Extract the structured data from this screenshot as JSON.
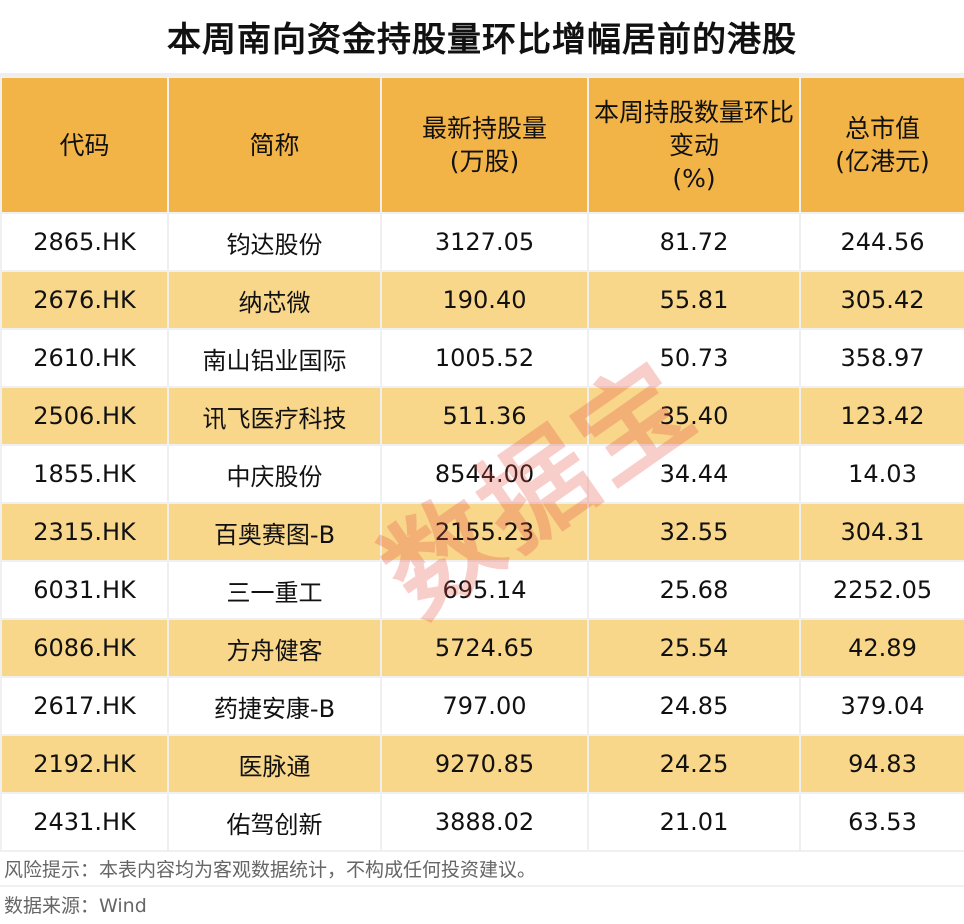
{
  "title": "本周南向资金持股量环比增幅居前的港股",
  "columns": [
    "代码",
    "简称",
    "最新持股量\n（万股）",
    "本周持股数量环比变动\n（%）",
    "总市值\n（亿港元）"
  ],
  "rows": [
    [
      "2865.HK",
      "钧达股份",
      "3127.05",
      "81.72",
      "244.56"
    ],
    [
      "2676.HK",
      "纳芯微",
      "190.40",
      "55.81",
      "305.42"
    ],
    [
      "2610.HK",
      "南山铝业国际",
      "1005.52",
      "50.73",
      "358.97"
    ],
    [
      "2506.HK",
      "讯飞医疗科技",
      "511.36",
      "35.40",
      "123.42"
    ],
    [
      "1855.HK",
      "中庆股份",
      "8544.00",
      "34.44",
      "14.03"
    ],
    [
      "2315.HK",
      "百奥赛图-B",
      "2155.23",
      "32.55",
      "304.31"
    ],
    [
      "6031.HK",
      "三一重工",
      "695.14",
      "25.68",
      "2252.05"
    ],
    [
      "6086.HK",
      "方舟健客",
      "5724.65",
      "25.54",
      "42.89"
    ],
    [
      "2617.HK",
      "药捷安康-B",
      "797.00",
      "24.85",
      "379.04"
    ],
    [
      "2192.HK",
      "医脉通",
      "9270.85",
      "24.25",
      "94.83"
    ],
    [
      "2431.HK",
      "佑驾创新",
      "3888.02",
      "21.01",
      "63.53"
    ]
  ],
  "risk_note": "风险提示：本表内容均为客观数据统计，不构成任何投资建议。",
  "source": "数据来源：Wind",
  "watermark": "数据宝",
  "colors": {
    "header": "#F2B347",
    "alt_row": "#F8D68A",
    "watermark": "#E65046"
  }
}
